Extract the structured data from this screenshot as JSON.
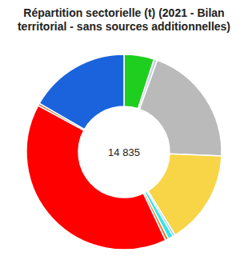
{
  "chart_data": {
    "type": "pie",
    "title": "Répartition sectorielle (t) (2021 - Bilan territorial - sans sources additionnelles)",
    "values": [
      742,
      80,
      2985,
      2308,
      60,
      124,
      80,
      5919,
      60,
      2477
    ],
    "colors": [
      "#1fcf1f",
      "#c9c9ee",
      "#bababa",
      "#f8d447",
      "#7fd0f5",
      "#33e6e6",
      "#f07a30",
      "#ff0000",
      "#c8783c",
      "#1a63dc"
    ],
    "center_label": {
      "value": 14835,
      "label": "14 835"
    }
  }
}
